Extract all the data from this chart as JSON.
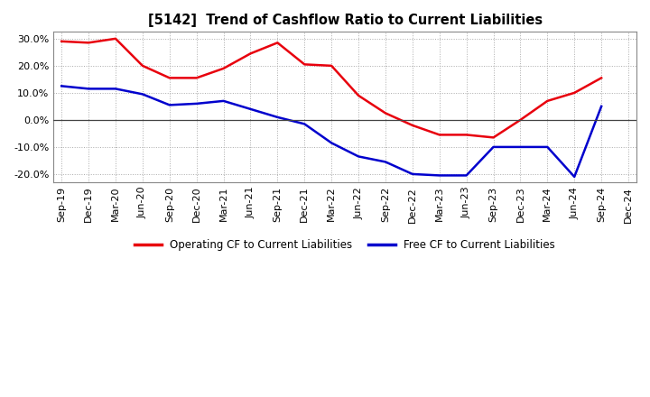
{
  "title": "[5142]  Trend of Cashflow Ratio to Current Liabilities",
  "x_labels": [
    "Sep-19",
    "Dec-19",
    "Mar-20",
    "Jun-20",
    "Sep-20",
    "Dec-20",
    "Mar-21",
    "Jun-21",
    "Sep-21",
    "Dec-21",
    "Mar-22",
    "Jun-22",
    "Sep-22",
    "Dec-22",
    "Mar-23",
    "Jun-23",
    "Sep-23",
    "Dec-23",
    "Mar-24",
    "Jun-24",
    "Sep-24",
    "Dec-24"
  ],
  "operating_cf": [
    0.29,
    0.285,
    0.3,
    0.2,
    0.155,
    0.155,
    0.19,
    0.245,
    0.285,
    0.205,
    0.2,
    0.09,
    0.025,
    -0.02,
    -0.055,
    -0.055,
    -0.065,
    0.0,
    0.07,
    0.1,
    0.155,
    null
  ],
  "free_cf": [
    0.125,
    0.115,
    0.115,
    0.095,
    0.055,
    0.06,
    0.07,
    0.04,
    0.01,
    -0.015,
    -0.085,
    -0.135,
    -0.155,
    -0.2,
    -0.205,
    -0.205,
    -0.1,
    -0.1,
    -0.1,
    -0.21,
    0.05,
    null
  ],
  "operating_color": "#e8000d",
  "free_color": "#0000cd",
  "ylim": [
    -0.23,
    0.325
  ],
  "yticks": [
    -0.2,
    -0.1,
    0.0,
    0.1,
    0.2,
    0.3
  ],
  "background_color": "#ffffff",
  "plot_bg_color": "#ffffff",
  "grid_color": "#aaaaaa",
  "legend_operating": "Operating CF to Current Liabilities",
  "legend_free": "Free CF to Current Liabilities",
  "line_width": 1.8
}
